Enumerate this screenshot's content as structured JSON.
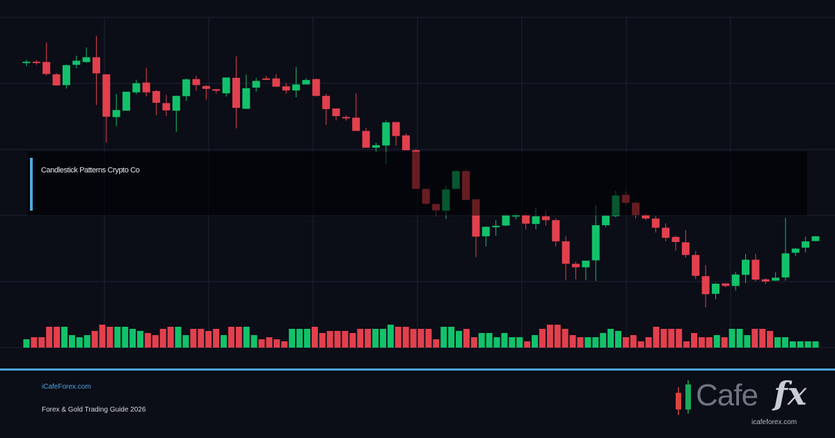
{
  "colors": {
    "background": "#0b0d17",
    "grid": "#1f2436",
    "bull": "#12c26a",
    "bear": "#e2404d",
    "accent": "#4ea6dd"
  },
  "title": "Candlestick Patterns Crypto Co",
  "footer": {
    "site_link": "iCafeForex.com",
    "guide": "Forex & Gold Trading Guide 2026"
  },
  "logo": {
    "word": "Cafe",
    "fx": "fx",
    "domain": "icafeforex.com",
    "icon": "candlestick-logo-icon"
  },
  "chart_data": {
    "type": "candlestick",
    "grid": true,
    "ylim": [
      0,
      100
    ],
    "candles": [
      [
        84.5,
        84.9,
        85.5,
        83.5
      ],
      [
        84.9,
        84.5,
        85.4,
        83.9
      ],
      [
        84.8,
        81.0,
        91.0,
        80.5
      ],
      [
        80.9,
        77.4,
        81.3,
        77.3
      ],
      [
        77.5,
        83.8,
        84.0,
        76.4
      ],
      [
        83.9,
        85.2,
        86.8,
        82.8
      ],
      [
        84.8,
        86.3,
        89.4,
        84.5
      ],
      [
        86.3,
        81.2,
        93.1,
        71.2
      ],
      [
        80.9,
        67.5,
        80.9,
        59.3
      ],
      [
        67.4,
        69.6,
        74.7,
        64.5
      ],
      [
        69.4,
        75.4,
        75.3,
        69.5
      ],
      [
        75.2,
        78.1,
        79.2,
        74.6
      ],
      [
        78.3,
        75.2,
        83.0,
        73.9
      ],
      [
        75.6,
        71.9,
        76.0,
        68.0
      ],
      [
        71.8,
        69.5,
        74.4,
        67.7
      ],
      [
        69.4,
        74.1,
        74.1,
        62.7
      ],
      [
        74.0,
        79.3,
        79.6,
        72.5
      ],
      [
        79.4,
        77.5,
        80.4,
        75.7
      ],
      [
        77.2,
        76.3,
        77.5,
        72.8
      ],
      [
        76.2,
        75.7,
        76.3,
        74.8
      ],
      [
        74.9,
        79.9,
        79.5,
        73.9
      ],
      [
        79.8,
        70.3,
        86.6,
        63.8
      ],
      [
        70.0,
        76.5,
        80.8,
        69.9
      ],
      [
        76.7,
        78.8,
        79.7,
        75.4
      ],
      [
        79.6,
        79.5,
        80.4,
        79.0
      ],
      [
        79.6,
        77.0,
        81.0,
        76.9
      ],
      [
        77.1,
        75.8,
        78.1,
        74.7
      ],
      [
        75.8,
        77.7,
        83.2,
        73.6
      ],
      [
        77.7,
        79.1,
        79.7,
        77.8
      ],
      [
        79.4,
        74.1,
        79.6,
        73.9
      ],
      [
        74.1,
        69.9,
        74.8,
        64.9
      ],
      [
        70.1,
        67.7,
        70.1,
        66.3
      ],
      [
        67.4,
        67.1,
        68.0,
        66.3
      ],
      [
        67.2,
        63.0,
        74.9,
        63.0
      ],
      [
        63.0,
        57.7,
        64.0,
        57.7
      ],
      [
        57.7,
        58.5,
        59.3,
        56.5
      ],
      [
        58.4,
        65.7,
        66.3,
        52.5
      ],
      [
        65.8,
        61.4,
        65.8,
        58.3
      ],
      [
        61.6,
        56.9,
        62.2,
        57.6
      ],
      [
        56.9,
        44.7,
        57.3,
        44.8
      ],
      [
        44.7,
        40.0,
        44.3,
        39.6
      ],
      [
        39.9,
        37.9,
        38.7,
        36.1
      ],
      [
        37.8,
        44.5,
        45.7,
        35.2
      ],
      [
        44.7,
        50.3,
        50.6,
        44.8
      ],
      [
        50.3,
        41.2,
        50.9,
        41.5
      ],
      [
        41.4,
        29.6,
        41.3,
        23.1
      ],
      [
        29.7,
        32.7,
        32.8,
        26.4
      ],
      [
        32.7,
        33.0,
        34.8,
        29.9
      ],
      [
        33.1,
        36.3,
        36.9,
        32.9
      ],
      [
        36.4,
        36.4,
        36.9,
        35.1
      ],
      [
        36.4,
        33.7,
        37.2,
        31.9
      ],
      [
        33.6,
        36.0,
        38.8,
        31.9
      ],
      [
        36.0,
        34.8,
        37.9,
        33.1
      ],
      [
        34.8,
        28.1,
        35.3,
        26.5
      ],
      [
        28.1,
        21.0,
        29.7,
        15.8
      ],
      [
        21.0,
        19.9,
        21.7,
        16.1
      ],
      [
        19.9,
        22.0,
        22.0,
        15.8
      ],
      [
        22.1,
        33.2,
        39.5,
        15.6
      ],
      [
        33.2,
        36.2,
        36.2,
        32.6
      ],
      [
        36.1,
        42.6,
        44.1,
        35.7
      ],
      [
        42.8,
        40.3,
        43.9,
        39.6
      ],
      [
        40.3,
        36.4,
        40.5,
        35.3
      ],
      [
        36.4,
        35.3,
        37.0,
        34.8
      ],
      [
        35.3,
        32.4,
        36.1,
        30.9
      ],
      [
        32.4,
        29.2,
        33.8,
        28.1
      ],
      [
        29.5,
        27.9,
        29.9,
        25.1
      ],
      [
        27.8,
        23.8,
        31.7,
        22.9
      ],
      [
        23.8,
        17.2,
        25.1,
        16.2
      ],
      [
        17.1,
        11.4,
        20.6,
        7.2
      ],
      [
        11.5,
        14.7,
        15.0,
        9.8
      ],
      [
        14.8,
        14.0,
        14.9,
        13.6
      ],
      [
        14.0,
        17.6,
        18.5,
        12.6
      ],
      [
        17.5,
        22.3,
        24.1,
        14.9
      ],
      [
        22.3,
        16.0,
        24.2,
        15.5
      ],
      [
        16.1,
        15.4,
        16.5,
        14.6
      ],
      [
        15.7,
        16.6,
        18.3,
        15.6
      ],
      [
        16.7,
        24.3,
        35.6,
        15.7
      ],
      [
        24.5,
        25.8,
        26.0,
        23.5
      ],
      [
        26.1,
        28.1,
        29.6,
        24.6
      ],
      [
        28.2,
        29.7,
        29.8,
        28.1
      ]
    ],
    "volume": [
      4,
      5,
      5,
      10,
      10,
      10,
      6,
      5,
      6,
      8,
      11,
      10,
      10,
      10,
      9,
      8,
      7,
      6,
      9,
      10,
      10,
      6,
      9,
      9,
      8,
      9,
      6,
      10,
      10,
      10,
      6,
      4,
      5,
      4,
      3,
      9,
      9,
      9,
      10,
      7,
      8,
      8,
      8,
      7,
      9,
      9,
      9,
      9,
      11,
      10,
      10,
      9,
      9,
      9,
      4,
      10,
      10,
      8,
      9,
      5,
      7,
      7,
      5,
      7,
      5,
      5,
      3,
      6,
      9,
      11,
      11,
      9,
      6,
      5,
      5,
      5,
      7,
      9,
      8,
      5,
      6,
      3,
      5,
      10,
      9,
      9,
      9,
      3,
      7,
      5,
      5,
      6,
      5,
      9,
      9,
      6,
      9,
      9,
      8,
      5,
      5,
      3,
      3,
      3,
      3
    ]
  }
}
